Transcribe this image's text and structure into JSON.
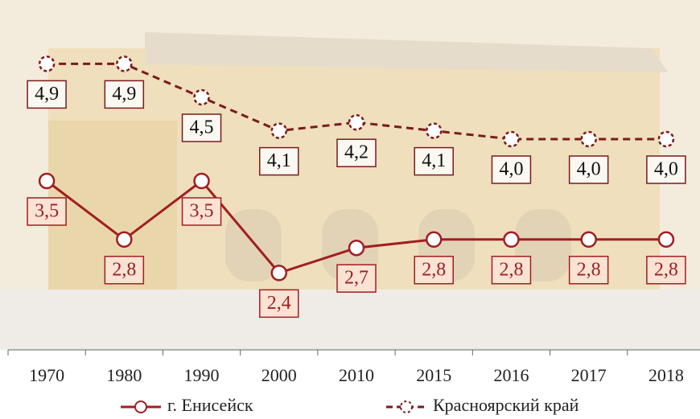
{
  "chart_data": {
    "type": "line",
    "categories": [
      "1970",
      "1980",
      "1990",
      "2000",
      "2010",
      "2015",
      "2016",
      "2017",
      "2018"
    ],
    "series": [
      {
        "name": "г. Енисейск",
        "color": "#a01e22",
        "dashed": false,
        "values": [
          3.5,
          2.8,
          3.5,
          2.4,
          2.7,
          2.8,
          2.8,
          2.8,
          2.8
        ],
        "value_labels": [
          "3,5",
          "2,8",
          "3,5",
          "2,4",
          "2,7",
          "2,8",
          "2,8",
          "2,8",
          "2,8"
        ]
      },
      {
        "name": "Красноярский край",
        "color": "#7b1a1e",
        "dashed": true,
        "values": [
          4.9,
          4.9,
          4.5,
          4.1,
          4.2,
          4.1,
          4.0,
          4.0,
          4.0
        ],
        "value_labels": [
          "4,9",
          "4,9",
          "4,5",
          "4,1",
          "4,2",
          "4,1",
          "4,0",
          "4,0",
          "4,0"
        ]
      }
    ]
  }
}
